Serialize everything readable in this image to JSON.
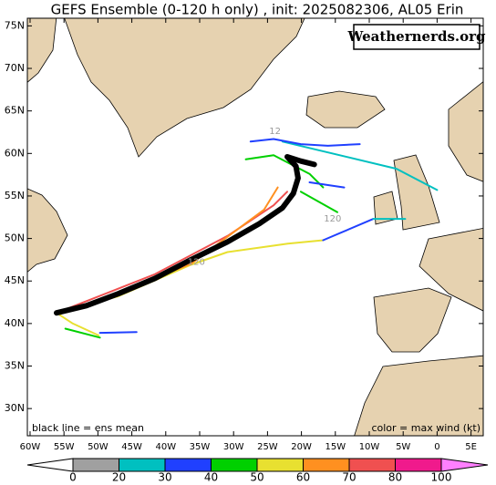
{
  "chart_data": {
    "type": "track-map",
    "title": "GEFS Ensemble (0-120 h only) , init: 2025082306, AL05 Erin",
    "logo": "Weathernerds.org",
    "annotations": [
      "black line = ens mean",
      "color = max wind (kt)"
    ],
    "xlim": [
      -60.4,
      6.8
    ],
    "ylim": [
      26.8,
      75.9
    ],
    "xticks": [
      {
        "value": -60,
        "label": "60W"
      },
      {
        "value": -55,
        "label": "55W"
      },
      {
        "value": -50,
        "label": "50W"
      },
      {
        "value": -45,
        "label": "45W"
      },
      {
        "value": -40,
        "label": "40W"
      },
      {
        "value": -35,
        "label": "35W"
      },
      {
        "value": -30,
        "label": "30W"
      },
      {
        "value": -25,
        "label": "25W"
      },
      {
        "value": -20,
        "label": "20W"
      },
      {
        "value": -15,
        "label": "15W"
      },
      {
        "value": -10,
        "label": "10W"
      },
      {
        "value": -5,
        "label": "5W"
      },
      {
        "value": 0,
        "label": "0"
      },
      {
        "value": 5,
        "label": "5E"
      }
    ],
    "yticks": [
      {
        "value": 75,
        "label": "75N"
      },
      {
        "value": 70,
        "label": "70N"
      },
      {
        "value": 65,
        "label": "65N"
      },
      {
        "value": 60,
        "label": "60N"
      },
      {
        "value": 55,
        "label": "55N"
      },
      {
        "value": 50,
        "label": "50N"
      },
      {
        "value": 45,
        "label": "45N"
      },
      {
        "value": 40,
        "label": "40N"
      },
      {
        "value": 35,
        "label": "35N"
      },
      {
        "value": 30,
        "label": "30N"
      }
    ],
    "series": [
      {
        "color": "#e8e030",
        "width": 2,
        "x": [
          -56.1,
          -47.0,
          -36.3,
          -30.9,
          -22.0,
          -16.8
        ],
        "values": [
          41.25,
          43.2,
          46.9,
          48.4,
          49.4,
          49.8
        ]
      },
      {
        "color": "#2040ff",
        "width": 2,
        "x": [
          -16.8,
          -9.4
        ],
        "values": [
          49.8,
          52.3
        ]
      },
      {
        "color": "#00c0c0",
        "width": 2,
        "x": [
          -9.4,
          -4.7
        ],
        "values": [
          52.3,
          52.3
        ]
      },
      {
        "color": "#00c0c0",
        "width": 2,
        "x": [
          -22.8,
          -6.0,
          0.0
        ],
        "values": [
          61.4,
          58.2,
          55.7
        ]
      },
      {
        "color": "#e8e030",
        "width": 2,
        "x": [
          -56.1,
          -53.7,
          -49.9
        ],
        "values": [
          41.25,
          40.0,
          38.6
        ]
      },
      {
        "color": "#00d000",
        "width": 2,
        "x": [
          -54.8,
          -49.7
        ],
        "values": [
          39.4,
          38.35
        ]
      },
      {
        "color": "#2040ff",
        "width": 2,
        "x": [
          -49.7,
          -44.3
        ],
        "values": [
          38.9,
          39.0
        ]
      },
      {
        "color": "#f05050",
        "width": 2,
        "x": [
          -56.1,
          -41.6,
          -30.9,
          -24.1,
          -22.1
        ],
        "values": [
          41.25,
          45.8,
          50.3,
          53.9,
          55.5
        ]
      },
      {
        "color": "#ff9020",
        "width": 2,
        "x": [
          -47.0,
          -36.3,
          -25.5,
          -23.5
        ],
        "values": [
          43.7,
          47.0,
          53.4,
          56.0
        ]
      },
      {
        "color": "#2040ff",
        "width": 2,
        "x": [
          -27.5,
          -24.1,
          -20.1,
          -16.1,
          -11.4
        ],
        "values": [
          61.4,
          61.7,
          61.1,
          60.9,
          61.1
        ]
      },
      {
        "color": "#00d000",
        "width": 2,
        "x": [
          -28.2,
          -24.1,
          -18.8,
          -16.8
        ],
        "values": [
          59.3,
          59.8,
          57.6,
          56.0
        ]
      },
      {
        "color": "#00d000",
        "width": 2,
        "x": [
          -20.1,
          -14.7
        ],
        "values": [
          55.5,
          53.1
        ]
      },
      {
        "color": "#2040ff",
        "width": 2,
        "x": [
          -18.8,
          -13.7
        ],
        "values": [
          56.6,
          56.0
        ]
      },
      {
        "color": "#000000",
        "width": 6,
        "x": [
          -56.1,
          -51.7,
          -47.0,
          -41.6,
          -36.3,
          -30.9,
          -26.2,
          -22.8,
          -21.2,
          -20.5,
          -20.8,
          -22.1,
          -20.1,
          -18.1
        ],
        "values": [
          41.25,
          42.1,
          43.5,
          45.3,
          47.5,
          49.6,
          51.75,
          53.6,
          55.3,
          57.1,
          58.5,
          59.6,
          59.1,
          58.7
        ]
      }
    ],
    "track_labels": [
      {
        "text": "120",
        "x": -15.4,
        "y": 52.3
      },
      {
        "text": "120",
        "x": -35.5,
        "y": 47.2
      },
      {
        "text": "12",
        "x": -23.9,
        "y": 62.6
      }
    ],
    "colorbar": {
      "bounds": [
        0,
        20,
        30,
        40,
        50,
        60,
        70,
        80,
        100
      ],
      "colors": [
        "#ffffff",
        "#a0a0a0",
        "#00c0c0",
        "#2040ff",
        "#00d000",
        "#e8e030",
        "#ff9020",
        "#f05050",
        "#f01a8c",
        "#ff80ff"
      ]
    }
  }
}
